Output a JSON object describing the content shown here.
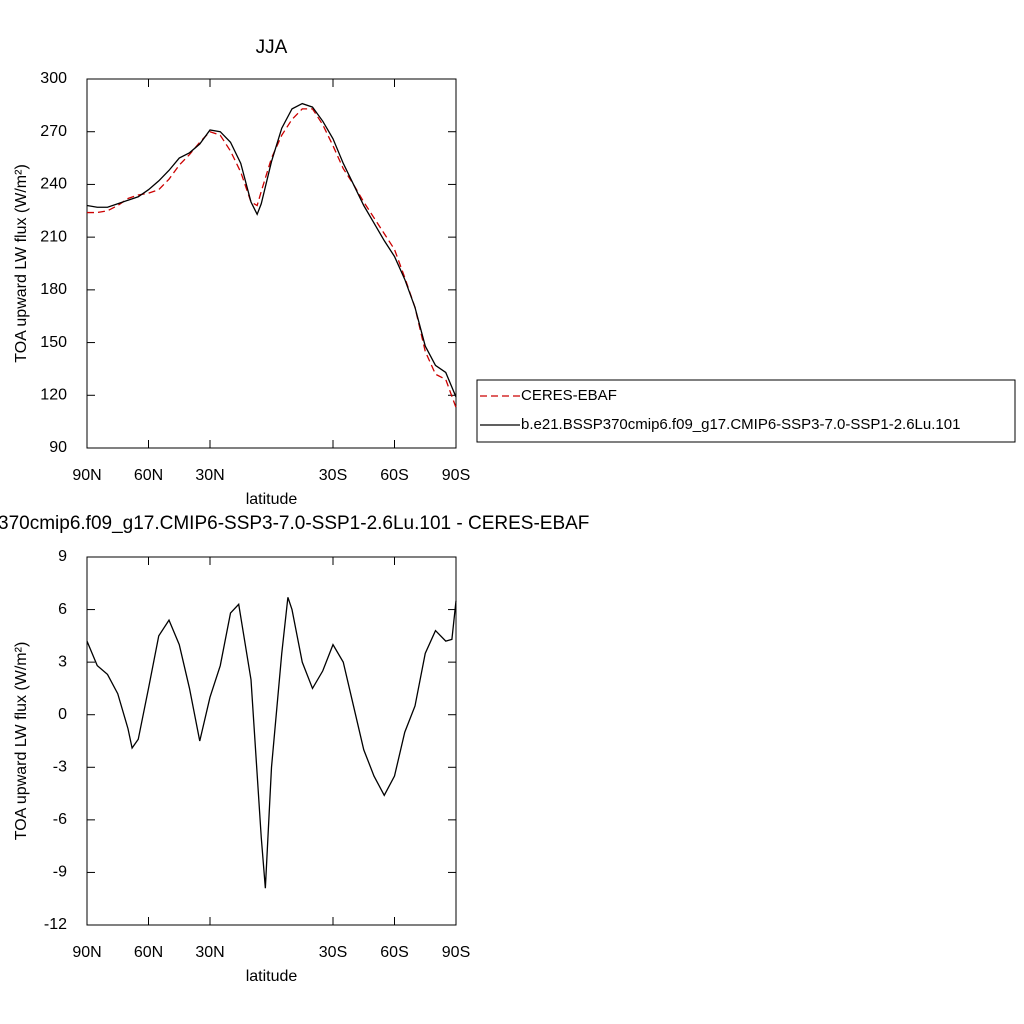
{
  "chart_data": [
    {
      "type": "line",
      "title": "JJA",
      "xlabel": "latitude",
      "ylabel": "TOA upward LW flux (W/m²)",
      "x": [
        90,
        85,
        80,
        75,
        70,
        65,
        60,
        55,
        50,
        45,
        40,
        35,
        30,
        25,
        20,
        15,
        10,
        7,
        5,
        0,
        -5,
        -10,
        -15,
        -20,
        -25,
        -30,
        -35,
        -40,
        -45,
        -50,
        -55,
        -60,
        -65,
        -70,
        -75,
        -80,
        -85,
        -90
      ],
      "series": [
        {
          "name": "CERES-EBAF",
          "color": "#cc0000",
          "style": "dashed",
          "values": [
            224,
            224,
            225,
            228,
            232,
            234,
            235,
            237,
            243,
            251,
            257,
            264,
            270,
            268,
            259,
            247,
            230,
            228,
            236,
            255,
            268,
            277,
            283,
            283,
            274,
            262,
            249,
            240,
            230,
            221,
            212,
            203,
            187,
            170,
            145,
            132,
            129,
            113
          ]
        },
        {
          "name": "b.e21.BSSP370cmip6.f09_g17.CMIP6-SSP3-7.0-SSP1-2.6Lu.101",
          "color": "#000000",
          "style": "solid",
          "values": [
            228,
            227,
            227,
            229,
            231,
            233,
            237,
            242,
            248,
            255,
            258,
            263,
            271,
            270,
            264,
            252,
            230,
            223,
            229,
            253,
            272,
            283,
            286,
            284,
            276,
            266,
            252,
            240,
            228,
            218,
            208,
            199,
            186,
            170,
            148,
            137,
            133,
            119
          ]
        }
      ],
      "xlim": [
        90,
        -90
      ],
      "xticks": [
        {
          "value": 90,
          "label": "90N"
        },
        {
          "value": 60,
          "label": "60N"
        },
        {
          "value": 30,
          "label": "30N"
        },
        {
          "value": -30,
          "label": "30S"
        },
        {
          "value": -60,
          "label": "60S"
        },
        {
          "value": -90,
          "label": "90S"
        }
      ],
      "ylim": [
        90,
        300
      ],
      "yticks": [
        300,
        270,
        240,
        210,
        180,
        150,
        120,
        90
      ],
      "legend": "right"
    },
    {
      "type": "line",
      "title": "370cmip6.f09_g17.CMIP6-SSP3-7.0-SSP1-2.6Lu.101 - CERES-EBAF",
      "xlabel": "latitude",
      "ylabel": "TOA upward LW flux (W/m²)",
      "x": [
        90,
        85,
        80,
        75,
        70,
        68,
        65,
        60,
        55,
        50,
        45,
        40,
        35,
        30,
        25,
        20,
        16,
        10,
        5,
        3,
        0,
        -5,
        -8,
        -10,
        -15,
        -20,
        -25,
        -30,
        -35,
        -40,
        -45,
        -50,
        -55,
        -60,
        -65,
        -70,
        -75,
        -80,
        -85,
        -88,
        -90
      ],
      "series": [
        {
          "color": "#000000",
          "style": "solid",
          "values": [
            4.2,
            2.8,
            2.3,
            1.2,
            -0.8,
            -1.9,
            -1.4,
            1.5,
            4.5,
            5.4,
            4.0,
            1.5,
            -1.5,
            1.0,
            2.8,
            5.8,
            6.3,
            2.0,
            -7,
            -9.9,
            -3,
            3.5,
            6.7,
            6.0,
            3.0,
            1.5,
            2.5,
            4.0,
            3.0,
            0.5,
            -2,
            -3.5,
            -4.6,
            -3.5,
            -1,
            0.5,
            3.5,
            4.8,
            4.2,
            4.3,
            6.5
          ]
        }
      ],
      "xlim": [
        90,
        -90
      ],
      "xticks": [
        {
          "value": 90,
          "label": "90N"
        },
        {
          "value": 60,
          "label": "60N"
        },
        {
          "value": 30,
          "label": "30N"
        },
        {
          "value": -30,
          "label": "30S"
        },
        {
          "value": -60,
          "label": "60S"
        },
        {
          "value": -90,
          "label": "90S"
        }
      ],
      "ylim": [
        -12,
        9
      ],
      "yticks": [
        9,
        6,
        3,
        0,
        -3,
        -6,
        -9,
        -12
      ]
    }
  ]
}
